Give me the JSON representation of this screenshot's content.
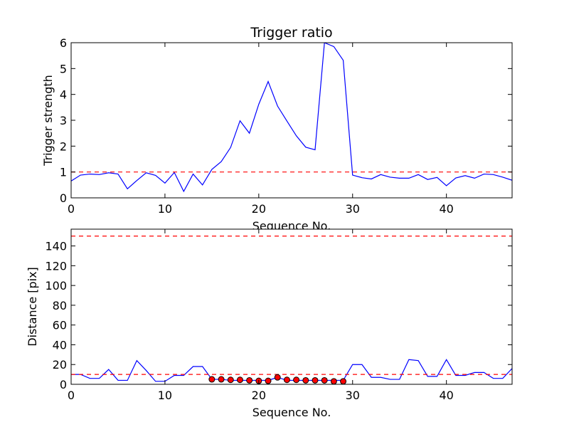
{
  "chart_data": [
    {
      "type": "line",
      "title": "Trigger ratio",
      "xlabel": "Sequence No.",
      "ylabel": "Trigger strength",
      "xlim": [
        0,
        47
      ],
      "ylim": [
        0,
        6
      ],
      "xticks": [
        0,
        10,
        20,
        30,
        40
      ],
      "yticks": [
        0,
        1,
        2,
        3,
        4,
        5,
        6
      ],
      "grid": false,
      "series": [
        {
          "color": "#0000ff",
          "style": "solid",
          "x": [
            0,
            1,
            2,
            3,
            4,
            5,
            6,
            7,
            8,
            9,
            10,
            11,
            12,
            13,
            14,
            15,
            16,
            17,
            18,
            19,
            20,
            21,
            22,
            23,
            24,
            25,
            26,
            27,
            28,
            29,
            30,
            31,
            32,
            33,
            34,
            35,
            36,
            37,
            38,
            39,
            40,
            41,
            42,
            43,
            44,
            45,
            46,
            47
          ],
          "y": [
            0.65,
            0.88,
            0.92,
            0.9,
            0.97,
            0.92,
            0.35,
            0.67,
            0.97,
            0.87,
            0.57,
            0.98,
            0.25,
            0.92,
            0.5,
            1.1,
            1.4,
            1.95,
            2.98,
            2.5,
            3.62,
            4.5,
            3.55,
            2.97,
            2.4,
            1.96,
            1.86,
            6.0,
            5.85,
            5.32,
            0.88,
            0.78,
            0.73,
            0.9,
            0.8,
            0.76,
            0.76,
            0.9,
            0.71,
            0.79,
            0.47,
            0.77,
            0.86,
            0.76,
            0.92,
            0.9,
            0.8,
            0.68
          ]
        },
        {
          "color": "#ff0000",
          "style": "dashed",
          "x": [
            0,
            47
          ],
          "y": [
            1,
            1
          ]
        }
      ]
    },
    {
      "type": "line",
      "title": "",
      "xlabel": "Sequence No.",
      "ylabel": "Distance [pix]",
      "xlim": [
        0,
        47
      ],
      "ylim": [
        0,
        157
      ],
      "xticks": [
        0,
        10,
        20,
        30,
        40
      ],
      "yticks": [
        0,
        20,
        40,
        60,
        80,
        100,
        120,
        140
      ],
      "grid": false,
      "series": [
        {
          "color": "#0000ff",
          "style": "solid",
          "x": [
            0,
            1,
            2,
            3,
            4,
            5,
            6,
            7,
            8,
            9,
            10,
            11,
            12,
            13,
            14,
            15,
            16,
            17,
            18,
            19,
            20,
            21,
            22,
            23,
            24,
            25,
            26,
            27,
            28,
            29,
            30,
            31,
            32,
            33,
            34,
            35,
            36,
            37,
            38,
            39,
            40,
            41,
            42,
            43,
            44,
            45,
            46,
            47
          ],
          "y": [
            10,
            10,
            6,
            6,
            15,
            4,
            4,
            24,
            14,
            3,
            3,
            9,
            9,
            18,
            18,
            5,
            5,
            4,
            4,
            4,
            4,
            4,
            7,
            4,
            4,
            4,
            4,
            4,
            4,
            4,
            20,
            20,
            7,
            7,
            5,
            5,
            25,
            24,
            8,
            8,
            25,
            9,
            9,
            12,
            12,
            6,
            6,
            16
          ]
        },
        {
          "color": "#ff0000",
          "style": "dashed",
          "x": [
            0,
            47
          ],
          "y": [
            10,
            10
          ]
        },
        {
          "color": "#ff0000",
          "style": "dashed",
          "x": [
            0,
            47
          ],
          "y": [
            150,
            150
          ]
        },
        {
          "color": "#ff0000",
          "style": "markers",
          "marker_edge": "#000000",
          "x": [
            15,
            16,
            17,
            18,
            19,
            20,
            21,
            22,
            23,
            24,
            25,
            26,
            27,
            28,
            29
          ],
          "y": [
            5,
            5,
            4.5,
            4.5,
            4,
            3.5,
            3.5,
            7,
            4.5,
            4.5,
            4,
            4,
            4,
            3,
            3
          ]
        }
      ]
    }
  ]
}
